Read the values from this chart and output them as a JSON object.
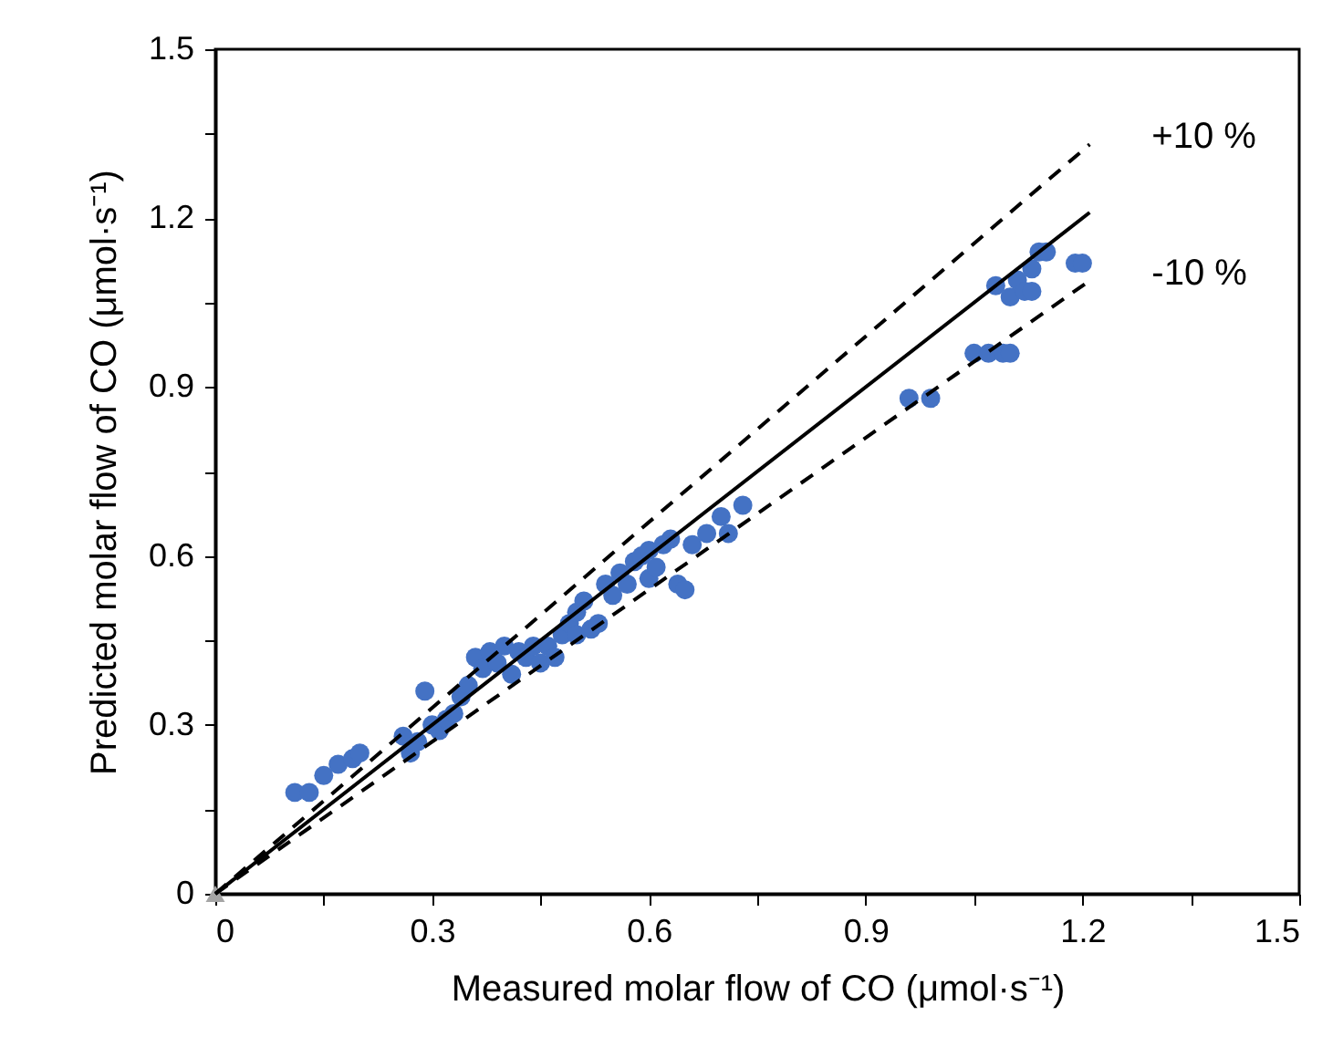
{
  "chart_data": {
    "type": "scatter",
    "xlabel": "Measured molar flow of CO (μmol·s⁻¹)",
    "ylabel": "Predicted molar flow of CO (μmol·s⁻¹)",
    "xlim": [
      0,
      1.5
    ],
    "ylim": [
      0,
      1.5
    ],
    "xticks": [
      0,
      {
        "value": 0.15,
        "label": null
      },
      0.3,
      {
        "value": 0.45,
        "label": null
      },
      0.6,
      {
        "value": 0.75,
        "label": null
      },
      0.9,
      {
        "value": 1.05,
        "label": null
      },
      1.2,
      {
        "value": 1.35,
        "label": null
      },
      1.5
    ],
    "yticks": [
      0,
      {
        "value": 0.15,
        "label": null
      },
      0.3,
      {
        "value": 0.45,
        "label": null
      },
      0.6,
      {
        "value": 0.75,
        "label": null
      },
      0.9,
      {
        "value": 1.05,
        "label": null
      },
      1.2,
      {
        "value": 1.35,
        "label": null
      },
      1.5
    ],
    "grid": false,
    "series": [
      {
        "marker": "circle",
        "color": "#4472c4",
        "x": [
          0.11,
          0.13,
          0.15,
          0.17,
          0.19,
          0.2,
          0.26,
          0.27,
          0.28,
          0.29,
          0.3,
          0.31,
          0.32,
          0.33,
          0.34,
          0.35,
          0.36,
          0.37,
          0.38,
          0.39,
          0.4,
          0.41,
          0.42,
          0.43,
          0.44,
          0.45,
          0.46,
          0.47,
          0.48,
          0.49,
          0.5,
          0.5,
          0.51,
          0.52,
          0.53,
          0.54,
          0.55,
          0.56,
          0.57,
          0.58,
          0.59,
          0.6,
          0.6,
          0.61,
          0.62,
          0.63,
          0.64,
          0.65,
          0.66,
          0.68,
          0.7,
          0.71,
          0.73,
          0.96,
          0.99,
          1.05,
          1.07,
          1.09,
          1.1,
          1.08,
          1.1,
          1.11,
          1.12,
          1.13,
          1.13,
          1.14,
          1.15,
          1.19,
          1.2
        ],
        "values": [
          0.18,
          0.18,
          0.21,
          0.23,
          0.24,
          0.25,
          0.28,
          0.25,
          0.27,
          0.36,
          0.3,
          0.29,
          0.31,
          0.32,
          0.35,
          0.37,
          0.42,
          0.4,
          0.43,
          0.41,
          0.44,
          0.39,
          0.43,
          0.42,
          0.44,
          0.41,
          0.44,
          0.42,
          0.46,
          0.48,
          0.5,
          0.46,
          0.52,
          0.47,
          0.48,
          0.55,
          0.53,
          0.57,
          0.55,
          0.59,
          0.6,
          0.61,
          0.56,
          0.58,
          0.62,
          0.63,
          0.55,
          0.54,
          0.62,
          0.64,
          0.67,
          0.64,
          0.69,
          0.88,
          0.88,
          0.96,
          0.96,
          0.96,
          0.96,
          1.08,
          1.06,
          1.09,
          1.07,
          1.07,
          1.11,
          1.14,
          1.14,
          1.12,
          1.12
        ]
      },
      {
        "marker": "triangle",
        "color": "#a5a5a5",
        "x": [
          0
        ],
        "values": [
          0
        ]
      },
      {
        "type": "line",
        "line_style": "solid",
        "color": "#000000",
        "x": [
          0,
          1.21
        ],
        "values": [
          0,
          1.21
        ]
      },
      {
        "type": "line",
        "line_style": "dashed",
        "color": "#000000",
        "x": [
          0,
          1.21
        ],
        "values": [
          0,
          1.331
        ]
      },
      {
        "type": "line",
        "line_style": "dashed",
        "color": "#000000",
        "x": [
          0,
          1.21
        ],
        "values": [
          0,
          1.089
        ]
      }
    ],
    "annotations": [
      "+10 %",
      "-10 %"
    ]
  }
}
